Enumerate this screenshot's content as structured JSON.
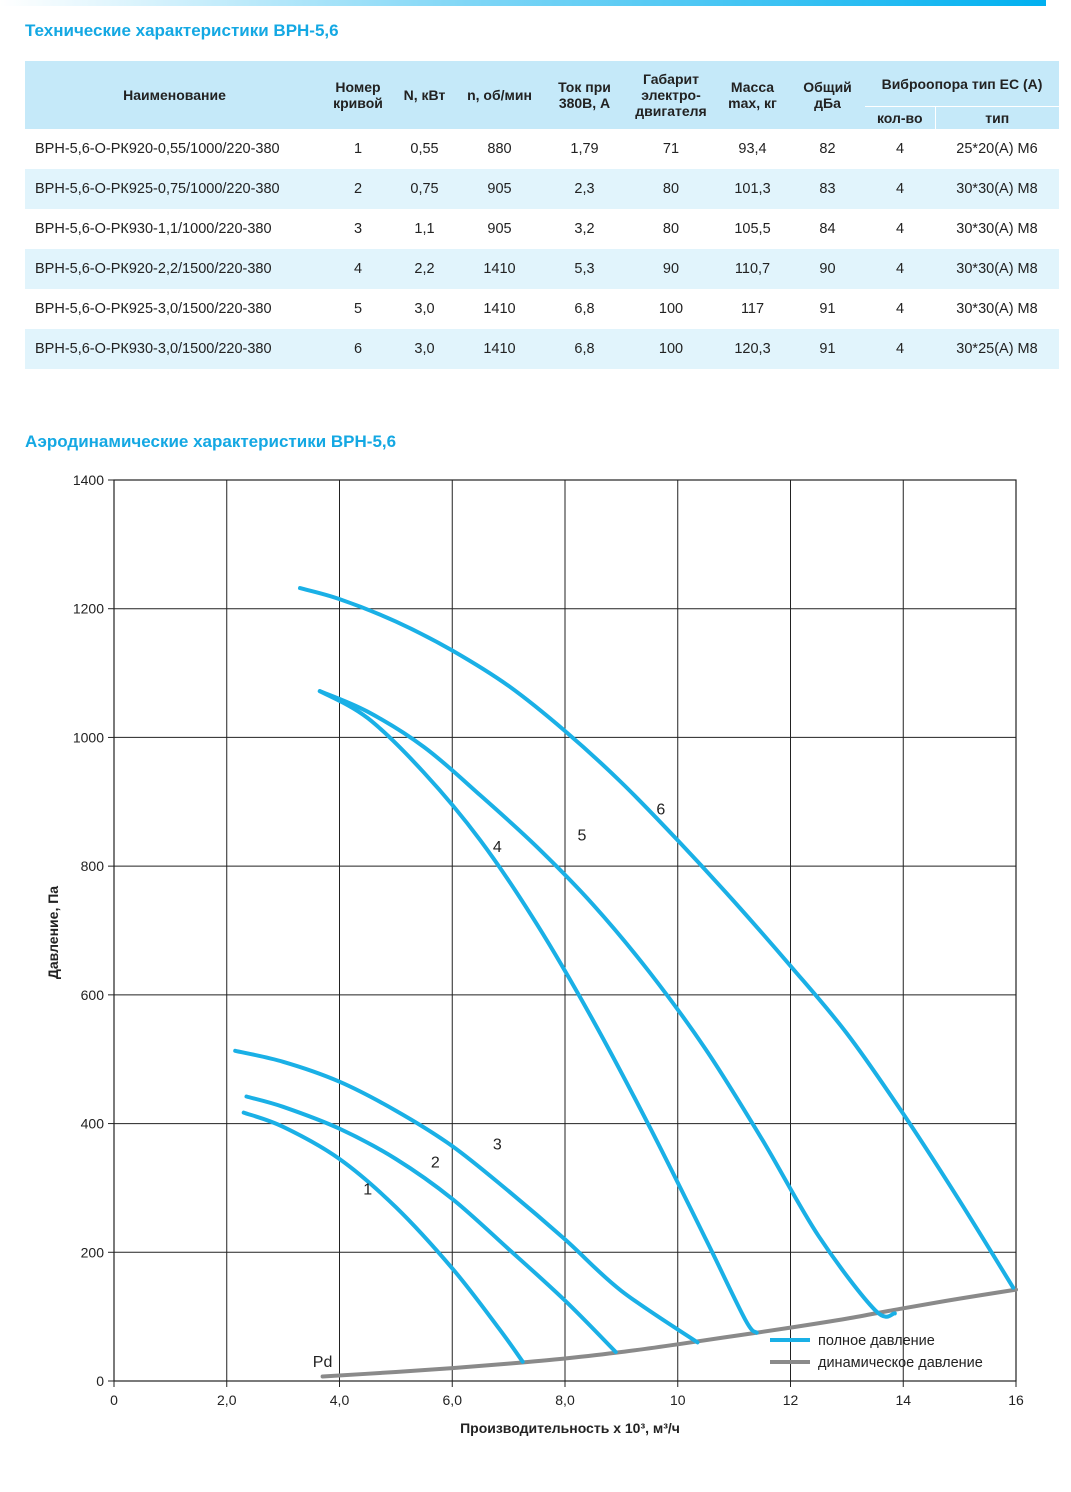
{
  "spec_section": {
    "title": "Технические характеристики ВРН-5,6",
    "headers": {
      "name": "Наименование",
      "curve": "Номер кривой",
      "power": "N, кВт",
      "speed": "n, об/мин",
      "current": "Ток при 380В, А",
      "frame": "Габарит электро-двигателя",
      "mass": "Масса max, кг",
      "noise": "Общий дБа",
      "mount": "Виброопора тип ЕС (А)",
      "mount_qty": "кол-во",
      "mount_type": "тип"
    },
    "rows": [
      {
        "name": "ВРН-5,6-О-РК920-0,55/1000/220-380",
        "curve": "1",
        "power": "0,55",
        "speed": "880",
        "current": "1,79",
        "frame": "71",
        "mass": "93,4",
        "noise": "82",
        "qty": "4",
        "type": "25*20(А) М6"
      },
      {
        "name": "ВРН-5,6-О-РК925-0,75/1000/220-380",
        "curve": "2",
        "power": "0,75",
        "speed": "905",
        "current": "2,3",
        "frame": "80",
        "mass": "101,3",
        "noise": "83",
        "qty": "4",
        "type": "30*30(А) М8"
      },
      {
        "name": "ВРН-5,6-О-РК930-1,1/1000/220-380",
        "curve": "3",
        "power": "1,1",
        "speed": "905",
        "current": "3,2",
        "frame": "80",
        "mass": "105,5",
        "noise": "84",
        "qty": "4",
        "type": "30*30(А) М8"
      },
      {
        "name": "ВРН-5,6-О-РК920-2,2/1500/220-380",
        "curve": "4",
        "power": "2,2",
        "speed": "1410",
        "current": "5,3",
        "frame": "90",
        "mass": "110,7",
        "noise": "90",
        "qty": "4",
        "type": "30*30(А) М8"
      },
      {
        "name": "ВРН-5,6-О-РК925-3,0/1500/220-380",
        "curve": "5",
        "power": "3,0",
        "speed": "1410",
        "current": "6,8",
        "frame": "100",
        "mass": "117",
        "noise": "91",
        "qty": "4",
        "type": "30*30(А) М8"
      },
      {
        "name": "ВРН-5,6-О-РК930-3,0/1500/220-380",
        "curve": "6",
        "power": "3,0",
        "speed": "1410",
        "current": "6,8",
        "frame": "100",
        "mass": "120,3",
        "noise": "91",
        "qty": "4",
        "type": "30*25(А) М8"
      }
    ]
  },
  "aero_section": {
    "title": "Аэродинамические характеристики ВРН-5,6"
  },
  "chart_data": {
    "type": "line",
    "xlabel": "Производительность х 10³, м³/ч",
    "ylabel": "Давление, Па",
    "xlim": [
      0,
      16
    ],
    "ylim": [
      0,
      1400
    ],
    "x_ticks": [
      0,
      2,
      4,
      6,
      8,
      10,
      12,
      14,
      16
    ],
    "x_tick_labels": [
      "0",
      "2,0",
      "4,0",
      "6,0",
      "8,0",
      "10",
      "12",
      "14",
      "16"
    ],
    "y_ticks": [
      0,
      200,
      400,
      600,
      800,
      1000,
      1200,
      1400
    ],
    "y_tick_labels": [
      "0",
      "200",
      "400",
      "600",
      "800",
      "1000",
      "1200",
      "1400"
    ],
    "grid": true,
    "legend": {
      "position": "bottom-right",
      "entries": [
        {
          "label": "полное давление",
          "color": "#1ab0e6"
        },
        {
          "label": "динамическое давление",
          "color": "#8a8a8a"
        }
      ]
    },
    "colors": {
      "full": "#1ab0e6",
      "dynamic": "#8a8a8a",
      "grid": "#222222"
    },
    "series": [
      {
        "name": "1",
        "kind": "full",
        "label_at": [
          4.5,
          290
        ],
        "points": [
          [
            2.3,
            417
          ],
          [
            3.0,
            395
          ],
          [
            4.0,
            345
          ],
          [
            5.0,
            270
          ],
          [
            6.0,
            175
          ],
          [
            6.8,
            85
          ],
          [
            7.25,
            30
          ]
        ]
      },
      {
        "name": "2",
        "kind": "full",
        "label_at": [
          5.7,
          332
        ],
        "points": [
          [
            2.35,
            442
          ],
          [
            3.0,
            426
          ],
          [
            4.0,
            392
          ],
          [
            5.0,
            345
          ],
          [
            6.0,
            283
          ],
          [
            7.0,
            205
          ],
          [
            8.0,
            125
          ],
          [
            8.9,
            45
          ]
        ]
      },
      {
        "name": "3",
        "kind": "full",
        "label_at": [
          6.8,
          360
        ],
        "points": [
          [
            2.15,
            513
          ],
          [
            3.0,
            496
          ],
          [
            4.0,
            465
          ],
          [
            5.0,
            420
          ],
          [
            6.0,
            365
          ],
          [
            7.0,
            295
          ],
          [
            8.0,
            220
          ],
          [
            9.0,
            140
          ],
          [
            10.35,
            60
          ]
        ]
      },
      {
        "name": "4",
        "kind": "full",
        "label_at": [
          6.8,
          822
        ],
        "points": [
          [
            3.65,
            1072
          ],
          [
            4.5,
            1030
          ],
          [
            5.5,
            945
          ],
          [
            6.5,
            840
          ],
          [
            7.5,
            710
          ],
          [
            8.5,
            560
          ],
          [
            9.5,
            395
          ],
          [
            10.5,
            220
          ],
          [
            11.2,
            95
          ],
          [
            11.4,
            75
          ]
        ]
      },
      {
        "name": "5",
        "kind": "full",
        "label_at": [
          8.3,
          840
        ],
        "points": [
          [
            3.65,
            1072
          ],
          [
            4.5,
            1040
          ],
          [
            5.5,
            985
          ],
          [
            6.5,
            910
          ],
          [
            7.5,
            830
          ],
          [
            8.5,
            740
          ],
          [
            9.5,
            635
          ],
          [
            10.5,
            515
          ],
          [
            11.5,
            375
          ],
          [
            12.5,
            225
          ],
          [
            13.5,
            110
          ],
          [
            13.85,
            105
          ]
        ]
      },
      {
        "name": "6",
        "kind": "full",
        "label_at": [
          9.7,
          880
        ],
        "points": [
          [
            3.3,
            1232
          ],
          [
            4.0,
            1215
          ],
          [
            5.0,
            1180
          ],
          [
            6.0,
            1135
          ],
          [
            7.0,
            1080
          ],
          [
            8.0,
            1010
          ],
          [
            9.0,
            930
          ],
          [
            10.0,
            840
          ],
          [
            11.0,
            745
          ],
          [
            12.0,
            645
          ],
          [
            13.0,
            540
          ],
          [
            14.0,
            415
          ],
          [
            15.0,
            280
          ],
          [
            15.95,
            145
          ]
        ]
      },
      {
        "name": "Pd",
        "kind": "dynamic",
        "label_at": [
          3.7,
          22
        ],
        "points": [
          [
            3.7,
            7
          ],
          [
            5.0,
            14
          ],
          [
            6.0,
            20
          ],
          [
            7.0,
            27
          ],
          [
            8.0,
            35
          ],
          [
            9.0,
            45
          ],
          [
            10.0,
            57
          ],
          [
            11.0,
            70
          ],
          [
            12.0,
            83
          ],
          [
            13.0,
            97
          ],
          [
            14.0,
            113
          ],
          [
            15.0,
            128
          ],
          [
            16.0,
            142
          ]
        ]
      }
    ]
  }
}
